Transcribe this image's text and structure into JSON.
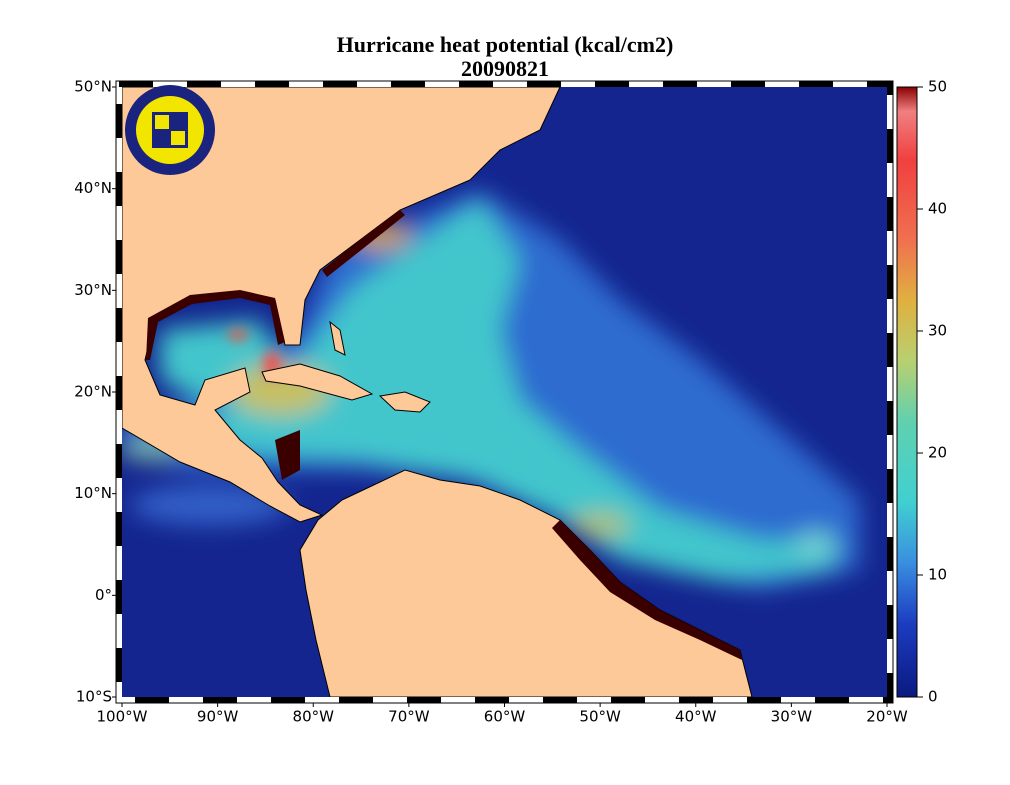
{
  "map": {
    "title": "Hurricane heat potential (kcal/cm2)",
    "date": "20090821",
    "lonlim": [
      -100,
      -20
    ],
    "latlim": [
      -10,
      50
    ],
    "lon_ticks": [
      {
        "value": -100,
        "label": "100°W"
      },
      {
        "value": -90,
        "label": "90°W"
      },
      {
        "value": -80,
        "label": "80°W"
      },
      {
        "value": -70,
        "label": "70°W"
      },
      {
        "value": -60,
        "label": "60°W"
      },
      {
        "value": -50,
        "label": "50°W"
      },
      {
        "value": -40,
        "label": "40°W"
      },
      {
        "value": -30,
        "label": "30°W"
      },
      {
        "value": -20,
        "label": "20°W"
      }
    ],
    "lat_ticks": [
      {
        "value": 50,
        "label": "50°N"
      },
      {
        "value": 40,
        "label": "40°N"
      },
      {
        "value": 30,
        "label": "30°N"
      },
      {
        "value": 20,
        "label": "20°N"
      },
      {
        "value": 10,
        "label": "10°N"
      },
      {
        "value": 0,
        "label": "0°"
      },
      {
        "value": -10,
        "label": "10°S"
      }
    ],
    "colorbar": {
      "lim": [
        0,
        50
      ],
      "ticks": [
        0,
        10,
        20,
        30,
        40,
        50
      ]
    }
  }
}
